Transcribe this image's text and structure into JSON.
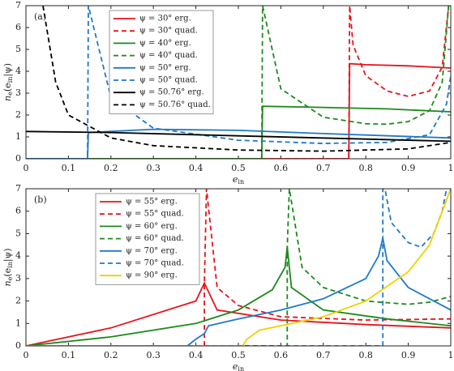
{
  "chart_data": [
    {
      "type": "line",
      "panel_label": "(a)",
      "xlabel": [
        "e",
        "in"
      ],
      "ylabel": [
        "n",
        "e",
        "(e",
        "in",
        "|ψ)"
      ],
      "xlim": [
        0,
        1
      ],
      "ylim": [
        0,
        7
      ],
      "xticks": [
        0,
        0.1,
        0.2,
        0.3,
        0.4,
        0.5,
        0.6,
        0.7,
        0.8,
        0.9,
        1
      ],
      "yticks": [
        0,
        1,
        2,
        3,
        4,
        5,
        6,
        7
      ],
      "legend": "upper-left",
      "series": [
        {
          "name": "ψ = 30° erg.",
          "color": "#e8131b",
          "dashed": false,
          "x": [
            0,
            0.76,
            0.762,
            0.8,
            0.9,
            1
          ],
          "values": [
            0,
            0,
            4.35,
            4.3,
            4.25,
            4.15
          ]
        },
        {
          "name": "ψ = 30° quad.",
          "color": "#e8131b",
          "dashed": true,
          "x": [
            0,
            0.76,
            0.762,
            0.77,
            0.8,
            0.85,
            0.9,
            0.95,
            0.98,
            0.995
          ],
          "values": [
            0,
            0,
            7,
            5.2,
            3.8,
            3.1,
            2.85,
            3.1,
            4.2,
            7
          ]
        },
        {
          "name": "ψ = 40° erg.",
          "color": "#1b8a1b",
          "dashed": false,
          "x": [
            0,
            0.555,
            0.557,
            0.7,
            0.85,
            1
          ],
          "values": [
            0,
            0,
            2.4,
            2.35,
            2.28,
            2.15
          ]
        },
        {
          "name": "ψ = 40° quad.",
          "color": "#1b8a1b",
          "dashed": true,
          "x": [
            0,
            0.555,
            0.557,
            0.6,
            0.7,
            0.8,
            0.85,
            0.9,
            0.95,
            0.98,
            0.995
          ],
          "values": [
            0,
            0,
            7,
            3.2,
            1.9,
            1.6,
            1.58,
            1.7,
            2.2,
            3.5,
            7
          ]
        },
        {
          "name": "ψ = 50° erg.",
          "color": "#1f78c8",
          "dashed": false,
          "x": [
            0,
            0.145,
            0.147,
            0.3,
            0.5,
            0.7,
            1
          ],
          "values": [
            0,
            0,
            1.2,
            1.35,
            1.3,
            1.15,
            0.95
          ]
        },
        {
          "name": "ψ = 50° quad.",
          "color": "#1f78c8",
          "dashed": true,
          "x": [
            0,
            0.145,
            0.147,
            0.2,
            0.3,
            0.5,
            0.7,
            0.85,
            0.95,
            0.99,
            1
          ],
          "values": [
            0,
            0,
            7,
            2.8,
            1.4,
            0.85,
            0.7,
            0.75,
            1.1,
            2.5,
            3.8
          ]
        },
        {
          "name": "ψ = 50.76° erg.",
          "color": "#000000",
          "dashed": false,
          "x": [
            0,
            0.2,
            0.5,
            0.8,
            1
          ],
          "values": [
            1.25,
            1.2,
            1.05,
            0.9,
            0.8
          ]
        },
        {
          "name": "ψ = 50.76° quad.",
          "color": "#000000",
          "dashed": true,
          "x": [
            0.04,
            0.07,
            0.1,
            0.2,
            0.3,
            0.5,
            0.7,
            0.9,
            1
          ],
          "values": [
            7,
            3.5,
            2,
            0.95,
            0.6,
            0.4,
            0.35,
            0.45,
            0.75
          ]
        }
      ]
    },
    {
      "type": "line",
      "panel_label": "(b)",
      "xlabel": [
        "e",
        "in"
      ],
      "ylabel": [
        "n",
        "e",
        "(e",
        "in",
        "|ψ)"
      ],
      "xlim": [
        0,
        1
      ],
      "ylim": [
        0,
        7
      ],
      "xticks": [
        0,
        0.1,
        0.2,
        0.3,
        0.4,
        0.5,
        0.6,
        0.7,
        0.8,
        0.9,
        1
      ],
      "yticks": [
        0,
        1,
        2,
        3,
        4,
        5,
        6,
        7
      ],
      "legend": "upper-left",
      "series": [
        {
          "name": "ψ = 55° erg.",
          "color": "#e8131b",
          "dashed": false,
          "x": [
            0,
            0.2,
            0.4,
            0.42,
            0.45,
            0.6,
            0.8,
            1
          ],
          "values": [
            0,
            0.8,
            2.0,
            2.8,
            1.6,
            1.15,
            0.95,
            0.8
          ]
        },
        {
          "name": "ψ = 55° quad.",
          "color": "#e8131b",
          "dashed": true,
          "x": [
            0,
            0.42,
            0.42,
            0.425,
            0.45,
            0.5,
            0.6,
            0.8,
            1
          ],
          "values": [
            0,
            0,
            2.8,
            7,
            2.6,
            1.8,
            1.3,
            1.15,
            1.2
          ]
        },
        {
          "name": "ψ = 60° erg.",
          "color": "#1b8a1b",
          "dashed": false,
          "x": [
            0,
            0.2,
            0.4,
            0.5,
            0.58,
            0.61,
            0.615,
            0.625,
            0.7,
            0.85,
            1
          ],
          "values": [
            0,
            0.4,
            1.0,
            1.6,
            2.5,
            3.5,
            4.4,
            2.6,
            1.6,
            1.2,
            0.9
          ]
        },
        {
          "name": "ψ = 60° quad.",
          "color": "#1b8a1b",
          "dashed": true,
          "x": [
            0,
            0.615,
            0.615,
            0.62,
            0.65,
            0.7,
            0.8,
            0.9,
            0.95,
            1
          ],
          "values": [
            0,
            0,
            4.4,
            7,
            3.5,
            2.6,
            2.0,
            1.85,
            1.95,
            2.2
          ]
        },
        {
          "name": "ψ = 70° erg.",
          "color": "#1f78c8",
          "dashed": false,
          "x": [
            0,
            0.38,
            0.4,
            0.42,
            0.43,
            0.5,
            0.6,
            0.7,
            0.8,
            0.83,
            0.84,
            0.85,
            0.9,
            1
          ],
          "values": [
            0,
            0,
            0.3,
            0.55,
            0.9,
            1.2,
            1.6,
            2.1,
            3.0,
            4.0,
            4.8,
            3.8,
            2.6,
            1.6
          ]
        },
        {
          "name": "ψ = 70° quad.",
          "color": "#1f78c8",
          "dashed": true,
          "x": [
            0,
            0.84,
            0.84,
            0.845,
            0.86,
            0.9,
            0.93,
            0.96,
            0.98,
            0.99
          ],
          "values": [
            0,
            0,
            7,
            7,
            5.5,
            4.6,
            4.4,
            5.0,
            6.0,
            7
          ]
        },
        {
          "name": "ψ = 90° erg.",
          "color": "#f0d000",
          "dashed": false,
          "x": [
            0,
            0.51,
            0.52,
            0.55,
            0.6,
            0.7,
            0.8,
            0.9,
            0.95,
            1
          ],
          "values": [
            0,
            0,
            0.3,
            0.7,
            0.9,
            1.3,
            2.0,
            3.3,
            4.5,
            7
          ]
        }
      ]
    }
  ]
}
